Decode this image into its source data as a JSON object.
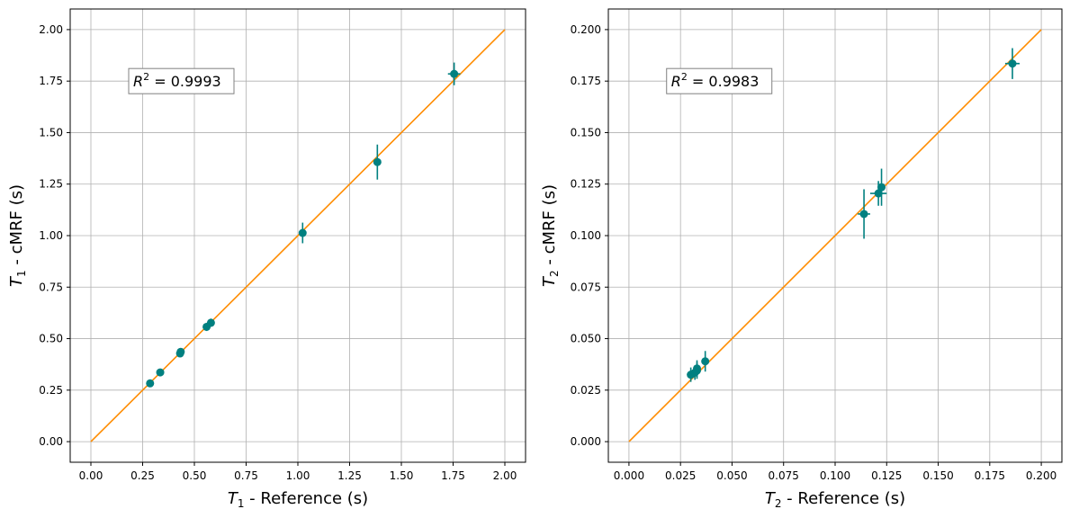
{
  "chart_data": [
    {
      "type": "scatter",
      "xlabel": {
        "symbol": "T",
        "subscript": "1",
        "text": " - Reference (s)"
      },
      "ylabel": {
        "symbol": "T",
        "subscript": "1",
        "text": " - cMRF (s)"
      },
      "xlim": [
        -0.1,
        2.1
      ],
      "ylim": [
        -0.1,
        2.1
      ],
      "xticks": [
        0.0,
        0.25,
        0.5,
        0.75,
        1.0,
        1.25,
        1.5,
        1.75,
        2.0
      ],
      "xtick_labels": [
        "0.00",
        "0.25",
        "0.50",
        "0.75",
        "1.00",
        "1.25",
        "1.50",
        "1.75",
        "2.00"
      ],
      "yticks": [
        0.0,
        0.25,
        0.5,
        0.75,
        1.0,
        1.25,
        1.5,
        1.75,
        2.0
      ],
      "ytick_labels": [
        "0.00",
        "0.25",
        "0.50",
        "0.75",
        "1.00",
        "1.25",
        "1.50",
        "1.75",
        "2.00"
      ],
      "grid": true,
      "identity_line": {
        "from": [
          0.0,
          0.0
        ],
        "to": [
          2.0,
          2.0
        ],
        "color": "#ff8c00"
      },
      "annotation": {
        "prefix": "R",
        "superscript": "2",
        "text": " = 0.9993",
        "x": 0.2,
        "y": 1.75
      },
      "point_color": "#008080",
      "points": [
        {
          "x": 0.286,
          "y": 0.283,
          "xerr": 0.005,
          "yerr": 0.012
        },
        {
          "x": 0.335,
          "y": 0.336,
          "xerr": 0.005,
          "yerr": 0.012
        },
        {
          "x": 0.431,
          "y": 0.428,
          "xerr": 0.008,
          "yerr": 0.015
        },
        {
          "x": 0.434,
          "y": 0.436,
          "xerr": 0.008,
          "yerr": 0.015
        },
        {
          "x": 0.559,
          "y": 0.557,
          "xerr": 0.01,
          "yerr": 0.02
        },
        {
          "x": 0.58,
          "y": 0.577,
          "xerr": 0.01,
          "yerr": 0.02
        },
        {
          "x": 1.023,
          "y": 1.013,
          "xerr": 0.012,
          "yerr": 0.05
        },
        {
          "x": 1.384,
          "y": 1.357,
          "xerr": 0.015,
          "yerr": 0.085
        },
        {
          "x": 1.755,
          "y": 1.785,
          "xerr": 0.03,
          "yerr": 0.055
        }
      ]
    },
    {
      "type": "scatter",
      "xlabel": {
        "symbol": "T",
        "subscript": "2",
        "text": " - Reference (s)"
      },
      "ylabel": {
        "symbol": "T",
        "subscript": "2",
        "text": " - cMRF (s)"
      },
      "xlim": [
        -0.01,
        0.21
      ],
      "ylim": [
        -0.01,
        0.21
      ],
      "xticks": [
        0.0,
        0.025,
        0.05,
        0.075,
        0.1,
        0.125,
        0.15,
        0.175,
        0.2
      ],
      "xtick_labels": [
        "0.000",
        "0.025",
        "0.050",
        "0.075",
        "0.100",
        "0.125",
        "0.150",
        "0.175",
        "0.200"
      ],
      "yticks": [
        0.0,
        0.025,
        0.05,
        0.075,
        0.1,
        0.125,
        0.15,
        0.175,
        0.2
      ],
      "ytick_labels": [
        "0.000",
        "0.025",
        "0.050",
        "0.075",
        "0.100",
        "0.125",
        "0.150",
        "0.175",
        "0.200"
      ],
      "grid": true,
      "identity_line": {
        "from": [
          0.0,
          0.0
        ],
        "to": [
          0.2,
          0.2
        ],
        "color": "#ff8c00"
      },
      "annotation": {
        "prefix": "R",
        "superscript": "2",
        "text": " = 0.9983",
        "x": 0.02,
        "y": 0.175
      },
      "point_color": "#008080",
      "points": [
        {
          "x": 0.03,
          "y": 0.0325,
          "xerr": 0.0015,
          "yerr": 0.0035
        },
        {
          "x": 0.032,
          "y": 0.0335,
          "xerr": 0.0015,
          "yerr": 0.0035
        },
        {
          "x": 0.033,
          "y": 0.0355,
          "xerr": 0.0015,
          "yerr": 0.004
        },
        {
          "x": 0.033,
          "y": 0.0345,
          "xerr": 0.0015,
          "yerr": 0.004
        },
        {
          "x": 0.037,
          "y": 0.039,
          "xerr": 0.0015,
          "yerr": 0.005
        },
        {
          "x": 0.114,
          "y": 0.1105,
          "xerr": 0.003,
          "yerr": 0.012
        },
        {
          "x": 0.121,
          "y": 0.1205,
          "xerr": 0.004,
          "yerr": 0.006
        },
        {
          "x": 0.1225,
          "y": 0.1235,
          "xerr": 0.0015,
          "yerr": 0.009
        },
        {
          "x": 0.186,
          "y": 0.1835,
          "xerr": 0.0035,
          "yerr": 0.0075
        }
      ]
    }
  ]
}
